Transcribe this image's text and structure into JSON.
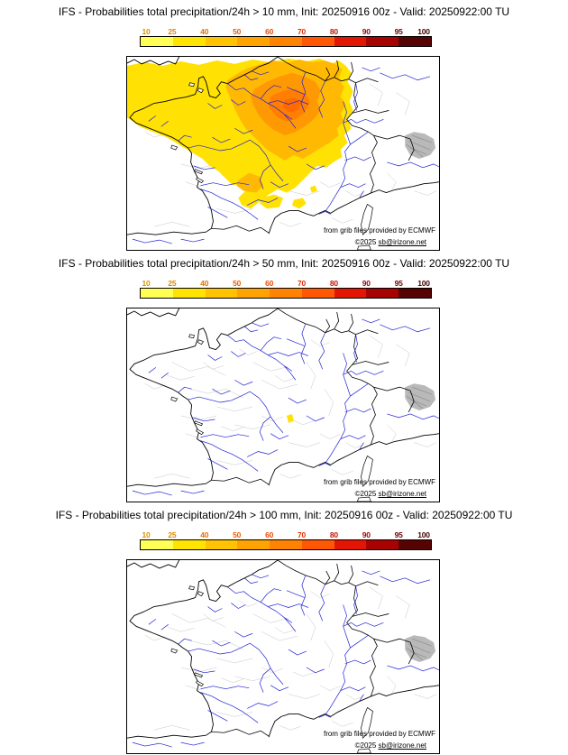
{
  "panels": [
    {
      "id": "10mm",
      "title": "IFS - Probabilities total precipitation/24h > 10 mm, Init: 20250916 00z - Valid: 20250922:00 TU",
      "threshold_mm": 10,
      "overlay": "large yellow field over northwest and central France with orange core (up to ~60-70%) between Paris basin and Burgundy, secondary orange streak near Toulouse, scattered yellow cells near Massif Central"
    },
    {
      "id": "50mm",
      "title": "IFS - Probabilities total precipitation/24h > 50 mm, Init: 20250916 00z - Valid: 20250922:00 TU",
      "threshold_mm": 50,
      "overlay": "single small yellow cell in central France"
    },
    {
      "id": "100mm",
      "title": "IFS - Probabilities total precipitation/24h > 100 mm, Init: 20250916 00z - Valid: 20250922:00 TU",
      "threshold_mm": 100,
      "overlay": "none"
    }
  ],
  "scale": {
    "ticks": [
      "10",
      "25",
      "40",
      "50",
      "60",
      "70",
      "80",
      "90",
      "95",
      "100"
    ],
    "tick_colors": [
      "#d99400",
      "#e08600",
      "#e57100",
      "#ea5e00",
      "#ee4a00",
      "#e13000",
      "#c61400",
      "#9d0000",
      "#6f0000",
      "#420000"
    ],
    "segment_colors": [
      "#ffff54",
      "#ffe403",
      "#ffc303",
      "#ffa303",
      "#ff8303",
      "#ff5703",
      "#e31603",
      "#a80303",
      "#570303"
    ]
  },
  "attribution": {
    "provider": "from grib files provided by ECMWF",
    "prefix": "©2025 ",
    "link": "sb@irizone.net"
  }
}
